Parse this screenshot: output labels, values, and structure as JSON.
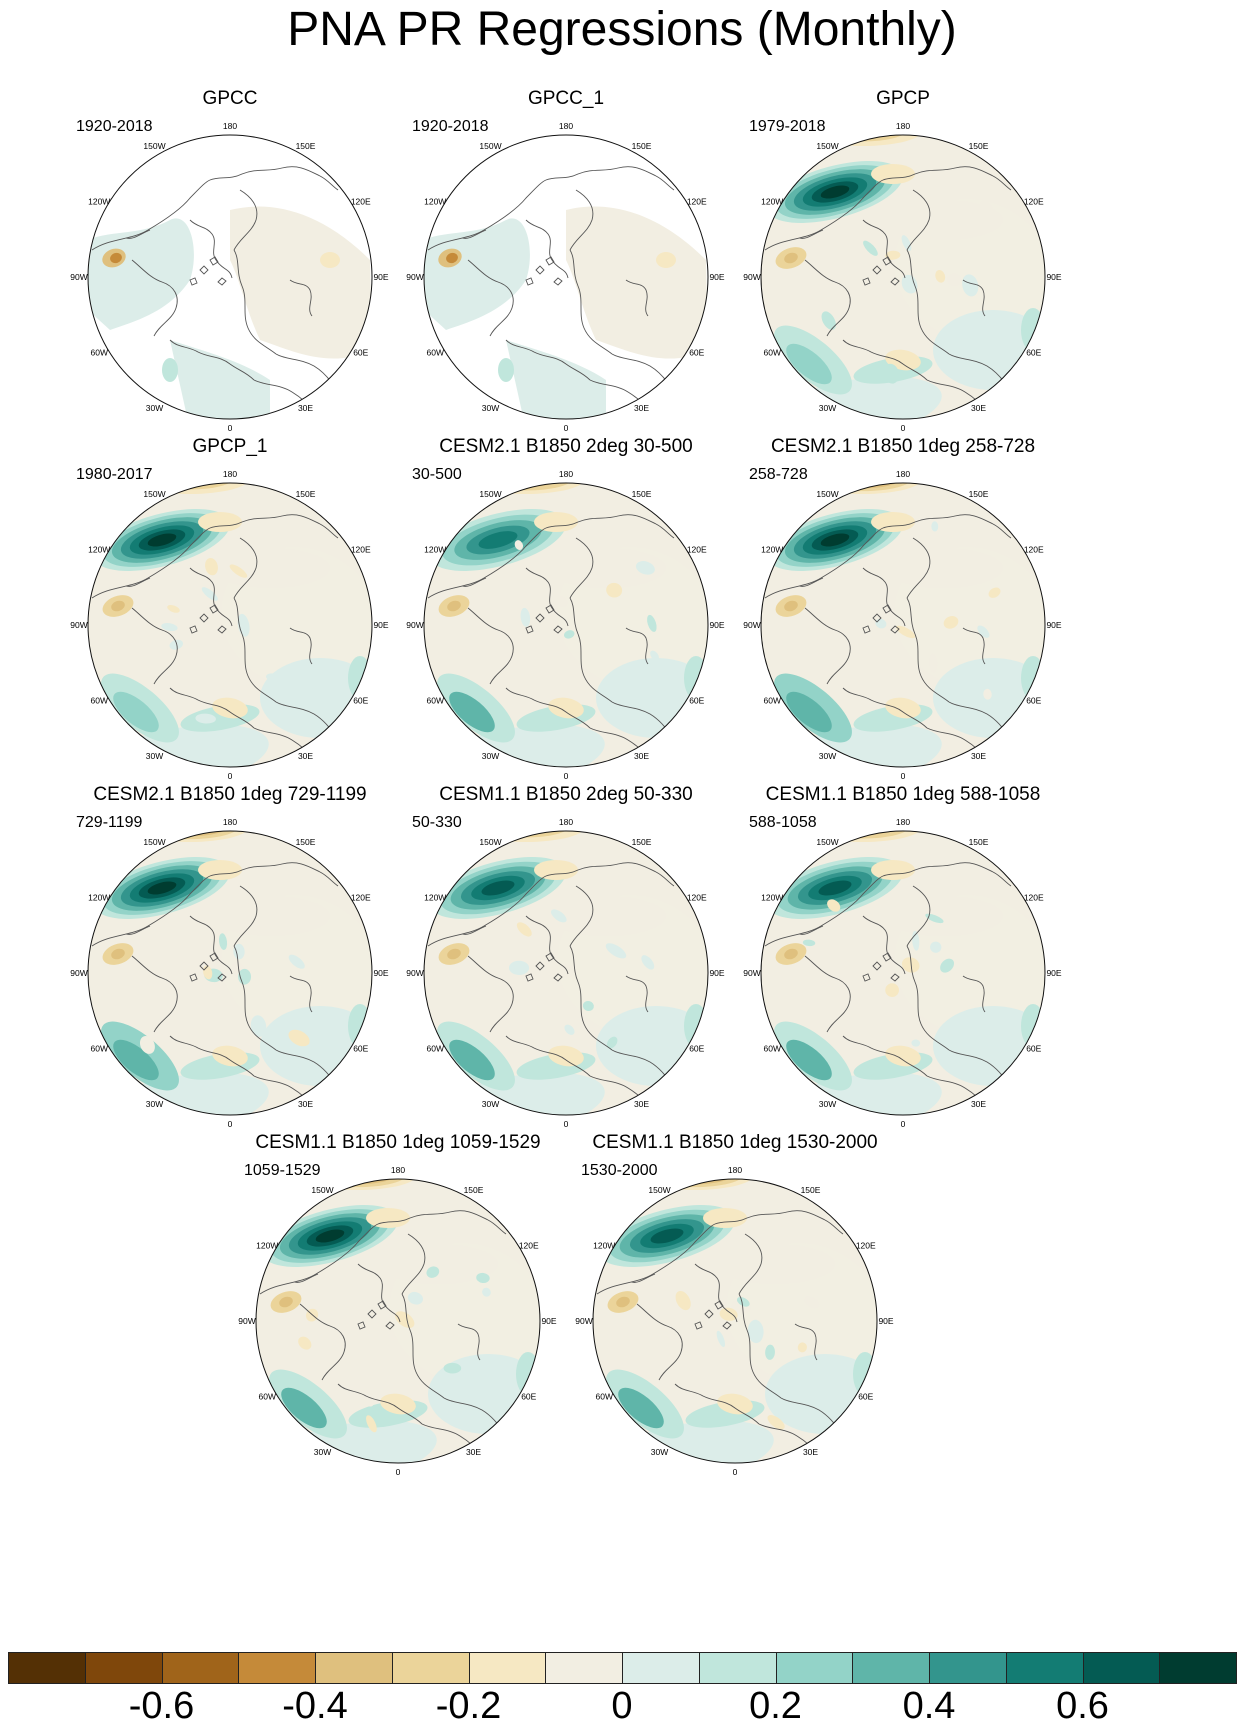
{
  "title": "PNA PR Regressions (Monthly)",
  "lon_labels": [
    "180",
    "150E",
    "120E",
    "90E",
    "60E",
    "30E",
    "0",
    "30W",
    "60W",
    "90W",
    "120W",
    "150W"
  ],
  "panels": [
    {
      "title": "GPCC",
      "years": "1920-2018",
      "coverage": "land"
    },
    {
      "title": "GPCC_1",
      "years": "1920-2018",
      "coverage": "land"
    },
    {
      "title": "GPCP",
      "years": "1979-2018",
      "coverage": "full",
      "pacific_max": 0.72,
      "pacific_min": -0.38,
      "atlantic": 0.25
    },
    {
      "title": "GPCP_1",
      "years": "1980-2017",
      "coverage": "full",
      "pacific_max": 0.72,
      "pacific_min": -0.38,
      "atlantic": 0.25
    },
    {
      "title": "CESM2.1 B1850 2deg 30-500",
      "years": "30-500",
      "coverage": "full",
      "pacific_max": 0.5,
      "pacific_min": -0.45,
      "atlantic": 0.3
    },
    {
      "title": "CESM2.1 B1850 1deg 258-728",
      "years": "258-728",
      "coverage": "full",
      "pacific_max": 0.75,
      "pacific_min": -0.5,
      "atlantic": 0.35
    },
    {
      "title": "CESM2.1 B1850 1deg 729-1199",
      "years": "729-1199",
      "coverage": "full",
      "pacific_max": 0.75,
      "pacific_min": -0.55,
      "atlantic": 0.35
    },
    {
      "title": "CESM1.1 B1850 2deg 50-330",
      "years": "50-330",
      "coverage": "full",
      "pacific_max": 0.6,
      "pacific_min": -0.35,
      "atlantic": 0.3
    },
    {
      "title": "CESM1.1 B1850 1deg 588-1058",
      "years": "588-1058",
      "coverage": "full",
      "pacific_max": 0.6,
      "pacific_min": -0.45,
      "atlantic": 0.3
    },
    {
      "title": "CESM1.1 B1850 1deg 1059-1529",
      "years": "1059-1529",
      "coverage": "full",
      "pacific_max": 0.7,
      "pacific_min": -0.55,
      "atlantic": 0.3
    },
    {
      "title": "CESM1.1 B1850 1deg 1530-2000",
      "years": "1530-2000",
      "coverage": "full",
      "pacific_max": 0.6,
      "pacific_min": -0.5,
      "atlantic": 0.3
    }
  ],
  "colorbar": {
    "colors": [
      "#543005",
      "#7f470b",
      "#a0641a",
      "#c58a39",
      "#dfc07e",
      "#ebd49a",
      "#f6e8c3",
      "#f2eee2",
      "#dcede9",
      "#c0e6dc",
      "#93d3c8",
      "#5fb5a9",
      "#33958d",
      "#137c73",
      "#045b53",
      "#003c30"
    ],
    "tick_labels": [
      "-0.6",
      "-0.4",
      "-0.2",
      "0",
      "0.2",
      "0.4",
      "0.6"
    ]
  }
}
